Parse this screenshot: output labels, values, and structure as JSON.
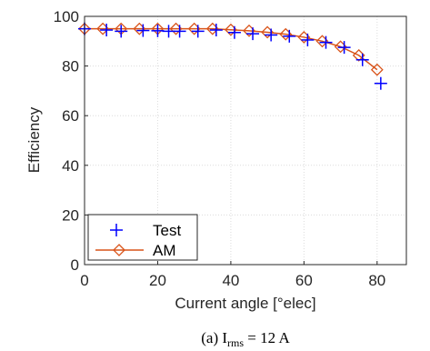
{
  "chart_data": {
    "type": "line",
    "xlabel": "Current angle [°elec]",
    "ylabel": "Efficiency",
    "xlim": [
      0,
      88
    ],
    "ylim": [
      0,
      100
    ],
    "xticks": [
      0,
      20,
      40,
      60,
      80
    ],
    "yticks": [
      0,
      20,
      40,
      60,
      80,
      100
    ],
    "grid": true,
    "legend": "bottom-left",
    "series": [
      {
        "name": "Test",
        "marker": "plus",
        "line": false,
        "color": "#0000ff",
        "x": [
          0,
          6,
          10,
          16,
          20,
          23,
          26,
          31,
          36,
          41,
          46,
          51,
          56,
          61,
          66,
          71,
          76,
          81
        ],
        "y": [
          95,
          94.5,
          94,
          94.3,
          94.2,
          94,
          94,
          94,
          94.5,
          93.5,
          93,
          92.5,
          92,
          90.5,
          89.5,
          87.5,
          82.5,
          73
        ]
      },
      {
        "name": "AM",
        "marker": "diamond",
        "line": true,
        "color": "#d95319",
        "x": [
          0,
          5,
          10,
          15,
          20,
          25,
          30,
          35,
          40,
          45,
          50,
          55,
          60,
          65,
          70,
          75,
          80
        ],
        "y": [
          95,
          95,
          95,
          95,
          95,
          95,
          95,
          95,
          94.6,
          94.2,
          93.6,
          92.8,
          91.6,
          90,
          87.8,
          84.3,
          78.5
        ]
      }
    ],
    "caption": {
      "prefix": "(a) I",
      "subscript": "rms",
      "suffix": " = 12 A"
    }
  }
}
